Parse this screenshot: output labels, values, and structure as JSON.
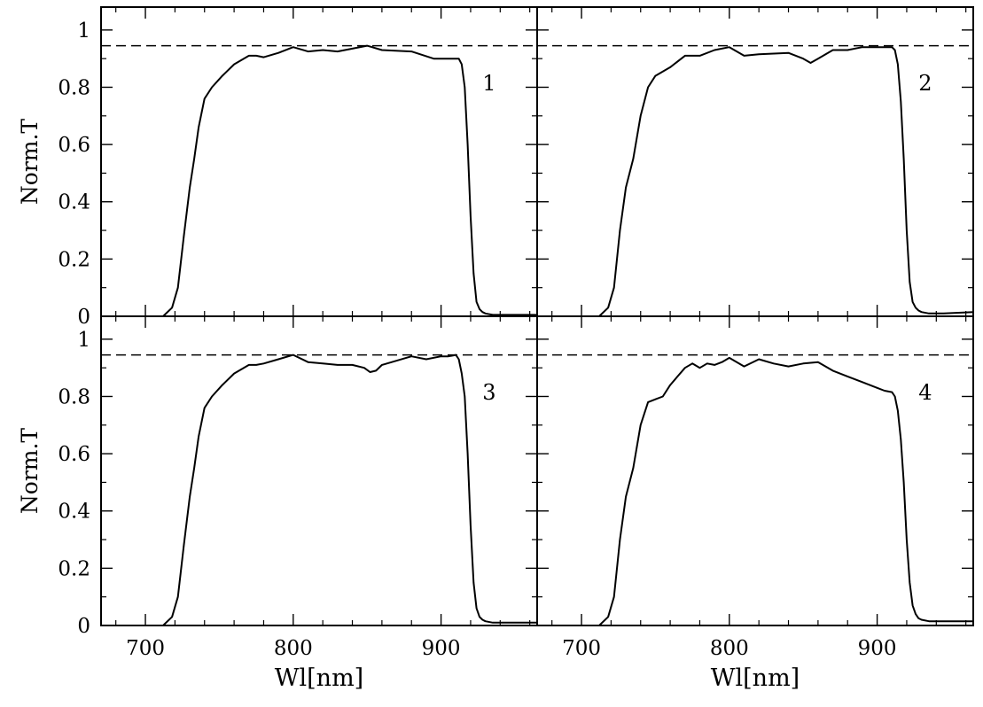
{
  "chart_data": [
    {
      "type": "line",
      "panel_label": "1",
      "xlim": [
        670,
        965
      ],
      "ylim": [
        0,
        1.08
      ],
      "xticks": [
        700,
        800,
        900
      ],
      "yticks": [
        0,
        0.2,
        0.4,
        0.6,
        0.8,
        1
      ],
      "x_tick_labels_shown": false,
      "y_tick_labels_shown": true,
      "xlabel": "",
      "ylabel": "Norm.T",
      "reference_line": {
        "y": 0.945,
        "style": "dashed"
      },
      "series": [
        {
          "x": [
            670,
            700,
            712,
            718,
            722,
            726,
            730,
            733,
            736,
            740,
            745,
            752,
            760,
            770,
            775,
            780,
            790,
            800,
            810,
            820,
            830,
            840,
            850,
            860,
            880,
            895,
            905,
            910,
            912,
            914,
            916,
            918,
            920,
            922,
            924,
            926,
            928,
            930,
            935,
            945,
            965
          ],
          "y": [
            0.0,
            0.0,
            0.0,
            0.03,
            0.1,
            0.28,
            0.45,
            0.55,
            0.66,
            0.76,
            0.8,
            0.84,
            0.88,
            0.91,
            0.91,
            0.905,
            0.92,
            0.94,
            0.925,
            0.93,
            0.925,
            0.935,
            0.945,
            0.93,
            0.925,
            0.9,
            0.9,
            0.9,
            0.9,
            0.88,
            0.8,
            0.6,
            0.35,
            0.15,
            0.05,
            0.025,
            0.015,
            0.01,
            0.005,
            0.005,
            0.005
          ]
        }
      ]
    },
    {
      "type": "line",
      "panel_label": "2",
      "xlim": [
        670,
        965
      ],
      "ylim": [
        0,
        1.08
      ],
      "xticks": [
        700,
        800,
        900
      ],
      "yticks": [
        0,
        0.2,
        0.4,
        0.6,
        0.8,
        1
      ],
      "x_tick_labels_shown": false,
      "y_tick_labels_shown": false,
      "xlabel": "",
      "ylabel": "",
      "reference_line": {
        "y": 0.945,
        "style": "dashed"
      },
      "series": [
        {
          "x": [
            670,
            700,
            712,
            718,
            722,
            726,
            730,
            735,
            740,
            745,
            750,
            760,
            770,
            780,
            790,
            800,
            810,
            820,
            840,
            850,
            855,
            860,
            870,
            880,
            890,
            900,
            905,
            910,
            912,
            914,
            916,
            918,
            920,
            922,
            924,
            926,
            928,
            930,
            935,
            945,
            965
          ],
          "y": [
            0.0,
            0.0,
            0.0,
            0.03,
            0.1,
            0.3,
            0.45,
            0.55,
            0.7,
            0.8,
            0.84,
            0.87,
            0.91,
            0.91,
            0.93,
            0.94,
            0.91,
            0.915,
            0.92,
            0.9,
            0.885,
            0.9,
            0.93,
            0.93,
            0.94,
            0.94,
            0.94,
            0.94,
            0.93,
            0.88,
            0.75,
            0.55,
            0.3,
            0.12,
            0.05,
            0.03,
            0.02,
            0.015,
            0.01,
            0.01,
            0.015
          ]
        }
      ]
    },
    {
      "type": "line",
      "panel_label": "3",
      "xlim": [
        670,
        965
      ],
      "ylim": [
        0,
        1.08
      ],
      "xticks": [
        700,
        800,
        900
      ],
      "yticks": [
        0,
        0.2,
        0.4,
        0.6,
        0.8,
        1
      ],
      "x_tick_labels_shown": true,
      "y_tick_labels_shown": true,
      "xlabel": "Wl[nm]",
      "ylabel": "Norm.T",
      "reference_line": {
        "y": 0.945,
        "style": "dashed"
      },
      "series": [
        {
          "x": [
            670,
            700,
            712,
            718,
            722,
            726,
            730,
            733,
            736,
            740,
            745,
            752,
            760,
            770,
            775,
            780,
            790,
            800,
            810,
            820,
            830,
            840,
            848,
            852,
            856,
            860,
            870,
            880,
            890,
            900,
            905,
            910,
            912,
            914,
            916,
            918,
            920,
            922,
            924,
            926,
            928,
            930,
            935,
            945,
            965
          ],
          "y": [
            0.0,
            0.0,
            0.0,
            0.03,
            0.1,
            0.28,
            0.45,
            0.55,
            0.66,
            0.76,
            0.8,
            0.84,
            0.88,
            0.91,
            0.91,
            0.915,
            0.93,
            0.945,
            0.92,
            0.915,
            0.91,
            0.91,
            0.9,
            0.885,
            0.89,
            0.91,
            0.925,
            0.94,
            0.93,
            0.94,
            0.94,
            0.945,
            0.93,
            0.88,
            0.8,
            0.6,
            0.35,
            0.15,
            0.06,
            0.03,
            0.02,
            0.015,
            0.01,
            0.01,
            0.01
          ]
        }
      ]
    },
    {
      "type": "line",
      "panel_label": "4",
      "xlim": [
        670,
        965
      ],
      "ylim": [
        0,
        1.08
      ],
      "xticks": [
        700,
        800,
        900
      ],
      "yticks": [
        0,
        0.2,
        0.4,
        0.6,
        0.8,
        1
      ],
      "x_tick_labels_shown": true,
      "y_tick_labels_shown": false,
      "xlabel": "Wl[nm]",
      "ylabel": "",
      "reference_line": {
        "y": 0.945,
        "style": "dashed"
      },
      "series": [
        {
          "x": [
            670,
            700,
            712,
            718,
            722,
            726,
            730,
            735,
            740,
            745,
            750,
            755,
            760,
            765,
            770,
            775,
            780,
            785,
            790,
            795,
            800,
            810,
            820,
            830,
            840,
            850,
            860,
            870,
            880,
            890,
            900,
            905,
            910,
            912,
            914,
            916,
            918,
            920,
            922,
            924,
            926,
            928,
            930,
            935,
            945,
            965
          ],
          "y": [
            0.0,
            0.0,
            0.0,
            0.03,
            0.1,
            0.3,
            0.45,
            0.55,
            0.7,
            0.78,
            0.79,
            0.8,
            0.84,
            0.87,
            0.9,
            0.915,
            0.9,
            0.915,
            0.91,
            0.92,
            0.935,
            0.905,
            0.93,
            0.915,
            0.905,
            0.915,
            0.92,
            0.89,
            0.87,
            0.85,
            0.83,
            0.82,
            0.815,
            0.8,
            0.75,
            0.65,
            0.5,
            0.3,
            0.15,
            0.07,
            0.04,
            0.025,
            0.02,
            0.015,
            0.015,
            0.015
          ]
        }
      ]
    }
  ]
}
